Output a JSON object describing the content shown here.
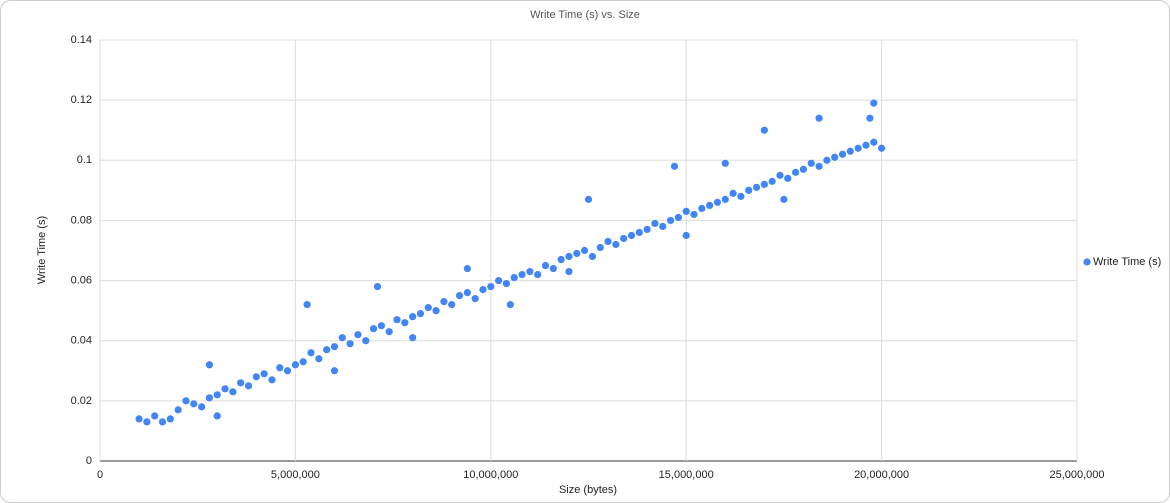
{
  "chart_data": {
    "type": "scatter",
    "title": "Write Time (s) vs. Size",
    "x_label": "Size (bytes)",
    "y_label": "Write Time (s)",
    "x": [
      1000000,
      1200000,
      1400000,
      1600000,
      1800000,
      2000000,
      2200000,
      2400000,
      2600000,
      2800000,
      3000000,
      3200000,
      3400000,
      3600000,
      3800000,
      4000000,
      4200000,
      4400000,
      4600000,
      4800000,
      5000000,
      5200000,
      5400000,
      5600000,
      5800000,
      6000000,
      6200000,
      6400000,
      6600000,
      6800000,
      7000000,
      7200000,
      7400000,
      7600000,
      7800000,
      8000000,
      8200000,
      8400000,
      8600000,
      8800000,
      9000000,
      9200000,
      9400000,
      9600000,
      9800000,
      10000000,
      10200000,
      10400000,
      10600000,
      10800000,
      11000000,
      11200000,
      11400000,
      11600000,
      11800000,
      12000000,
      12200000,
      12400000,
      12600000,
      12800000,
      13000000,
      13200000,
      13400000,
      13600000,
      13800000,
      14000000,
      14200000,
      14400000,
      14600000,
      14800000,
      15000000,
      15200000,
      15400000,
      15600000,
      15800000,
      16000000,
      16200000,
      16400000,
      16600000,
      16800000,
      17000000,
      17200000,
      17400000,
      17600000,
      17800000,
      18000000,
      18200000,
      18400000,
      18600000,
      18800000,
      19000000,
      19200000,
      19400000,
      19600000,
      19800000,
      20000000,
      2800000,
      5300000,
      7100000,
      12500000,
      14700000,
      17000000,
      18400000,
      19800000,
      9400000,
      19700000,
      16000000,
      3000000,
      6000000,
      10500000,
      15000000,
      17500000,
      12000000,
      8000000
    ],
    "series": [
      {
        "name": "Write Time (s)",
        "color": "#4285f4",
        "values": [
          0.014,
          0.013,
          0.015,
          0.013,
          0.014,
          0.017,
          0.02,
          0.019,
          0.018,
          0.021,
          0.022,
          0.024,
          0.023,
          0.026,
          0.025,
          0.028,
          0.029,
          0.027,
          0.031,
          0.03,
          0.032,
          0.033,
          0.036,
          0.034,
          0.037,
          0.038,
          0.041,
          0.039,
          0.042,
          0.04,
          0.044,
          0.045,
          0.043,
          0.047,
          0.046,
          0.048,
          0.049,
          0.051,
          0.05,
          0.053,
          0.052,
          0.055,
          0.056,
          0.054,
          0.057,
          0.058,
          0.06,
          0.059,
          0.061,
          0.062,
          0.063,
          0.062,
          0.065,
          0.064,
          0.067,
          0.068,
          0.069,
          0.07,
          0.068,
          0.071,
          0.073,
          0.072,
          0.074,
          0.075,
          0.076,
          0.077,
          0.079,
          0.078,
          0.08,
          0.081,
          0.083,
          0.082,
          0.084,
          0.085,
          0.086,
          0.087,
          0.089,
          0.088,
          0.09,
          0.091,
          0.092,
          0.093,
          0.095,
          0.094,
          0.096,
          0.097,
          0.099,
          0.098,
          0.1,
          0.101,
          0.102,
          0.103,
          0.104,
          0.105,
          0.106,
          0.104,
          0.032,
          0.052,
          0.058,
          0.087,
          0.098,
          0.11,
          0.114,
          0.119,
          0.064,
          0.114,
          0.099,
          0.015,
          0.03,
          0.052,
          0.075,
          0.087,
          0.063,
          0.041
        ]
      }
    ],
    "xlim": [
      0,
      25000000
    ],
    "xticks": [
      0,
      {
        "value": 5000000,
        "label": "5,000,000"
      },
      {
        "value": 10000000,
        "label": "10,000,000"
      },
      {
        "value": 15000000,
        "label": "15,000,000"
      },
      {
        "value": 20000000,
        "label": "20,000,000"
      },
      {
        "value": 25000000,
        "label": "25,000,000"
      }
    ],
    "ylim": [
      0,
      0.14
    ],
    "yticks": [
      0,
      0.02,
      0.04,
      0.06,
      0.08,
      0.1,
      0.12,
      0.14
    ],
    "grid": true,
    "legend": "right"
  }
}
